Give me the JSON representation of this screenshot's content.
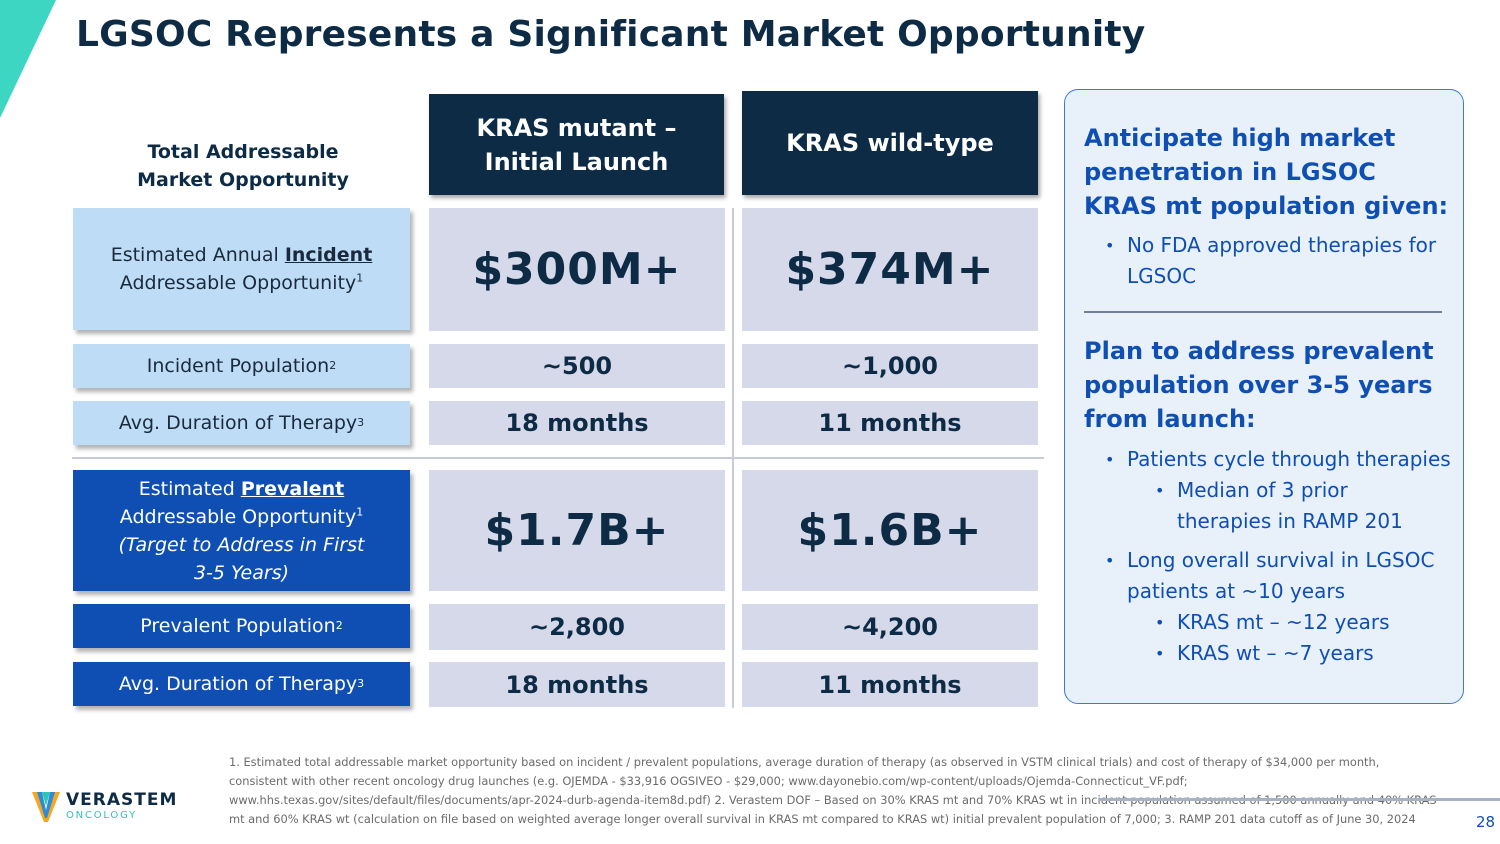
{
  "title": "LGSOC Represents a Significant Market Opportunity",
  "table": {
    "corner_label": [
      "Total Addressable",
      "Market Opportunity"
    ],
    "columns": [
      {
        "line1": "KRAS mutant –",
        "line2": "Initial Launch"
      },
      {
        "line1": "KRAS wild-type",
        "line2": ""
      }
    ],
    "rows": {
      "incident_opportunity": {
        "pre": "Estimated Annual ",
        "emph": "Incident",
        "post": "Addressable Opportunity",
        "sup": "1",
        "values": [
          "$300M+",
          "$374M+"
        ]
      },
      "incident_population": {
        "label": "Incident Population",
        "sup": "2",
        "values": [
          "~500",
          "~1,000"
        ]
      },
      "incident_duration": {
        "label": "Avg. Duration of Therapy",
        "sup": "3",
        "values": [
          "18 months",
          "11 months"
        ]
      },
      "prevalent_opportunity": {
        "pre": "Estimated ",
        "emph": "Prevalent",
        "post": "Addressable Opportunity",
        "sup": "1",
        "italic": "(Target to Address  in First 3-5 Years)",
        "values": [
          "$1.7B+",
          "$1.6B+"
        ]
      },
      "prevalent_population": {
        "label": "Prevalent Population",
        "sup": "2",
        "values": [
          "~2,800",
          "~4,200"
        ]
      },
      "prevalent_duration": {
        "label": "Avg. Duration of Therapy",
        "sup": "3",
        "values": [
          "18 months",
          "11 months"
        ]
      }
    }
  },
  "sidebar": {
    "heading1": "Anticipate high market penetration in LGSOC KRAS mt population given:",
    "bullets1": [
      "No FDA approved therapies for LGSOC"
    ],
    "heading2": "Plan to address prevalent population over 3-5 years from launch:",
    "bullets2": [
      "Patients cycle through therapies",
      "Median of 3 prior therapies in RAMP 201",
      "Long overall survival in LGSOC patients at ~10 years",
      "KRAS mt – ~12 years",
      "KRAS wt – ~7 years"
    ]
  },
  "logo": {
    "name": "VERASTEM",
    "sub": "ONCOLOGY"
  },
  "footnote": "1. Estimated total addressable market opportunity based on incident / prevalent populations, average duration of therapy (as observed in VSTM clinical trials) and cost of therapy of $34,000 per month, consistent with other recent oncology drug launches (e.g. OJEMDA - $33,916 OGSIVEO - $29,000; www.dayonebio.com/wp-content/uploads/Ojemda-Connecticut_VF.pdf; www.hhs.texas.gov/sites/default/files/documents/apr-2024-durb-agenda-item8d.pdf) 2. Verastem DOF – Based on 30% KRAS mt and 70% KRAS wt in incident population assumed of 1,500 annually and 40% KRAS mt and 60% KRAS wt (calculation on file based on weighted average longer overall survival in KRAS mt compared to KRAS wt) initial prevalent population of 7,000; 3. RAMP 201 data cutoff as of June 30, 2024",
  "page_number": "28",
  "colors": {
    "navy": "#0d2b45",
    "blue": "#0f4fb3",
    "light_blue": "#bfdcf7",
    "cell": "#d6d9ea",
    "teal": "#2ec4b6"
  }
}
